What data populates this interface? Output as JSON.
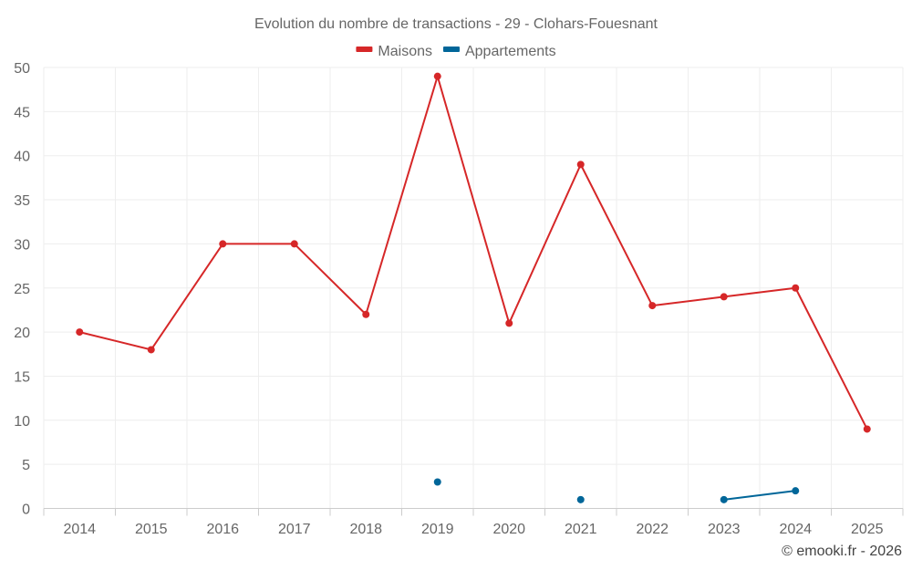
{
  "chart_data": {
    "type": "line",
    "title": "Evolution du nombre de transactions - 29 - Clohars-Fouesnant",
    "categories": [
      "2014",
      "2015",
      "2016",
      "2017",
      "2018",
      "2019",
      "2020",
      "2021",
      "2022",
      "2023",
      "2024",
      "2025"
    ],
    "ylim": [
      0,
      50
    ],
    "yticks": [
      0,
      5,
      10,
      15,
      20,
      25,
      30,
      35,
      40,
      45,
      50
    ],
    "grid": true,
    "legend_position": "top",
    "series": [
      {
        "name": "Maisons",
        "color": "#d62728",
        "values": [
          20,
          18,
          30,
          30,
          22,
          49,
          21,
          39,
          23,
          24,
          25,
          9
        ]
      },
      {
        "name": "Appartements",
        "color": "#006699",
        "values": [
          null,
          null,
          null,
          null,
          null,
          3,
          null,
          1,
          null,
          1,
          2,
          null
        ]
      }
    ]
  },
  "credit": "© emooki.fr - 2026"
}
